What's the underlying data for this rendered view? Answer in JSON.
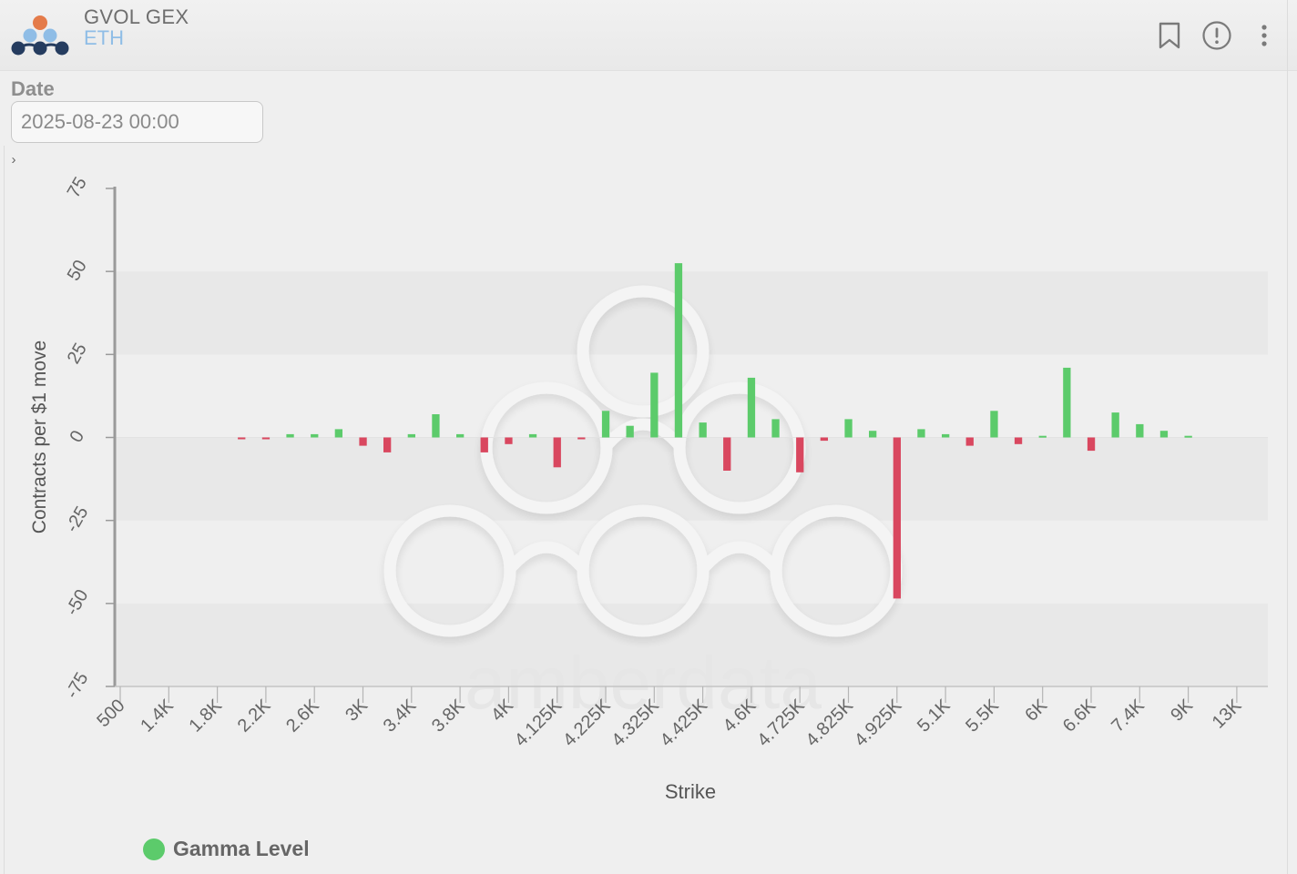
{
  "header": {
    "title": "GVOL GEX",
    "subtitle": "ETH",
    "icons": {
      "logo": "gvol-logo",
      "bookmark": "bookmark-icon",
      "info": "alert-circle-icon",
      "menu": "more-vertical-icon"
    }
  },
  "filters": {
    "date_label": "Date",
    "date_value": "2025-08-23 00:00",
    "expander_glyph": "›"
  },
  "watermark_text": "amberdata",
  "colors": {
    "positive": "#5ccb6b",
    "negative": "#d9475f",
    "axis": "#9a9a9a",
    "band": "#e8e8e8"
  },
  "legend": {
    "label": "Gamma Level"
  },
  "chart_data": {
    "type": "bar",
    "ylabel": "Contracts per $1 move",
    "xlabel": "Strike",
    "ylim": [
      -75,
      75
    ],
    "yticks": [
      75,
      50,
      25,
      0,
      -25,
      -50,
      -75
    ],
    "grid": "alternating horizontal bands",
    "legend_position": "bottom-left",
    "xtick_labels": [
      "500",
      "1.4K",
      "1.8K",
      "2.2K",
      "2.6K",
      "3K",
      "3.4K",
      "3.8K",
      "4K",
      "4.125K",
      "4.225K",
      "4.325K",
      "4.425K",
      "4.6K",
      "4.725K",
      "4.825K",
      "4.925K",
      "5.1K",
      "5.5K",
      "6K",
      "6.6K",
      "7.4K",
      "9K",
      "13K"
    ],
    "series": [
      {
        "name": "Gamma Level",
        "values": [
          0,
          0,
          0,
          0,
          0,
          -0.5,
          -0.5,
          1,
          1,
          2.5,
          -2.5,
          -4.5,
          1,
          7,
          1,
          -4.5,
          -2,
          1,
          -9,
          -0.5,
          8,
          3.5,
          19.5,
          52.5,
          4.5,
          -10,
          18,
          5.5,
          -10.5,
          -1,
          5.5,
          2,
          -48.5,
          2.5,
          1,
          -2.5,
          8,
          -2,
          0.5,
          21,
          -4,
          7.5,
          4,
          2,
          0.5,
          0,
          0
        ],
        "colors_by_sign": true
      }
    ]
  }
}
